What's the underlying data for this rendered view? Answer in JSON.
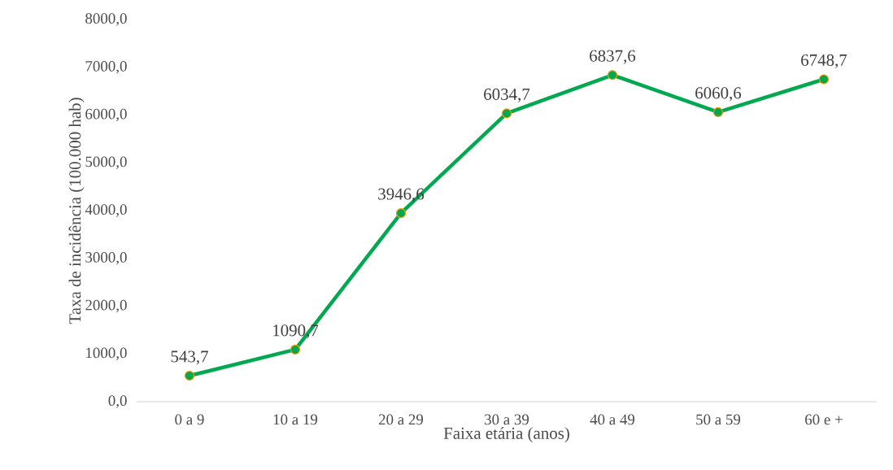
{
  "chart_data": {
    "type": "line",
    "xlabel": "Faixa etária (anos)",
    "ylabel": "Taxa de incidência (100.000 hab)",
    "categories": [
      "0 a 9",
      "10 a 19",
      "20 a 29",
      "30 a 39",
      "40 a 49",
      "50 a 59",
      "60 e +"
    ],
    "series": [
      {
        "color": "#00a84f",
        "values": [
          543.7,
          1090.7,
          3946.6,
          6034.7,
          6837.6,
          6060.6,
          6748.7
        ],
        "value_labels": [
          "543,7",
          "1090,7",
          "3946,6",
          "6034,7",
          "6837,6",
          "6060,6",
          "6748,7"
        ]
      }
    ],
    "ylim": [
      0,
      8000
    ],
    "yticks": [
      {
        "value": 0,
        "label": "0,0"
      },
      {
        "value": 1000,
        "label": "1000,0"
      },
      {
        "value": 2000,
        "label": "2000,0"
      },
      {
        "value": 3000,
        "label": "3000,0"
      },
      {
        "value": 4000,
        "label": "4000,0"
      },
      {
        "value": 5000,
        "label": "5000,0"
      },
      {
        "value": 6000,
        "label": "6000,0"
      },
      {
        "value": 7000,
        "label": "7000,0"
      },
      {
        "value": 8000,
        "label": "8000,0"
      }
    ],
    "grid": false,
    "marker": "circle",
    "line_style": "solid"
  }
}
